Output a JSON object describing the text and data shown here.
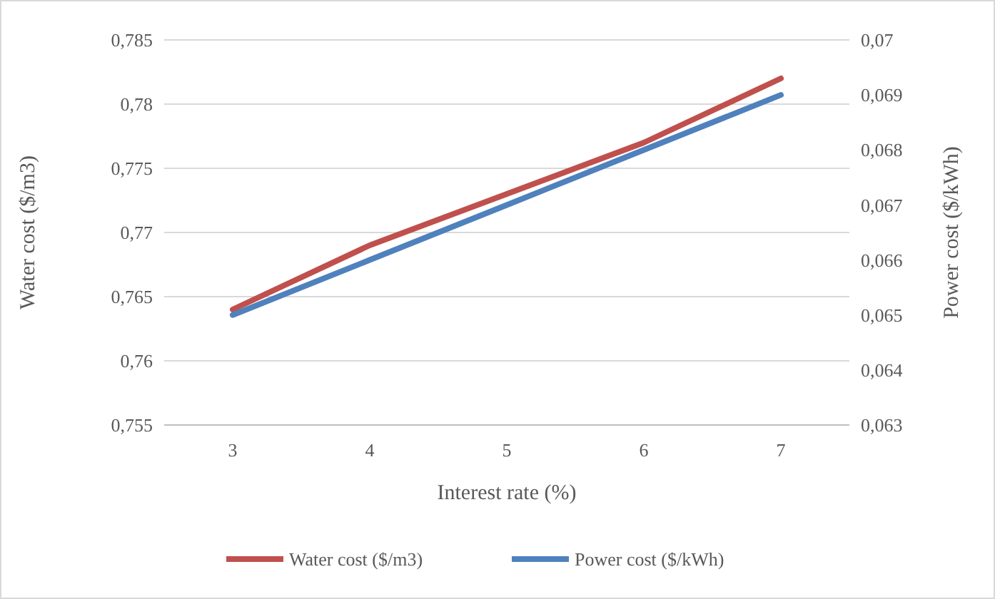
{
  "chart_data": {
    "type": "line",
    "xlabel": "Interest rate (%)",
    "ylabel": "Water cost ($/m3)",
    "y2label": "Power cost ($/kWh)",
    "categories": [
      "3",
      "4",
      "5",
      "6",
      "7"
    ],
    "series": [
      {
        "name": "Water cost ($/m3)",
        "color": "#c0504d",
        "values": [
          0.764,
          0.769,
          0.773,
          0.777,
          0.782
        ]
      },
      {
        "name": "Power cost ($/kWh)",
        "color": "#4f81bd",
        "axis": "y2",
        "values": [
          0.065,
          0.066,
          0.067,
          0.068,
          0.069
        ]
      }
    ],
    "ylim": [
      0.755,
      0.785
    ],
    "yticks": [
      {
        "value": 0.755,
        "label": "0,755"
      },
      {
        "value": 0.76,
        "label": "0,76"
      },
      {
        "value": 0.765,
        "label": "0,765"
      },
      {
        "value": 0.77,
        "label": "0,77"
      },
      {
        "value": 0.775,
        "label": "0,775"
      },
      {
        "value": 0.78,
        "label": "0,78"
      },
      {
        "value": 0.785,
        "label": "0,785"
      }
    ],
    "y2lim": [
      0.063,
      0.07
    ],
    "y2ticks": [
      {
        "value": 0.063,
        "label": "0,063"
      },
      {
        "value": 0.064,
        "label": "0,064"
      },
      {
        "value": 0.065,
        "label": "0,065"
      },
      {
        "value": 0.066,
        "label": "0,066"
      },
      {
        "value": 0.067,
        "label": "0,067"
      },
      {
        "value": 0.068,
        "label": "0,068"
      },
      {
        "value": 0.069,
        "label": "0,069"
      },
      {
        "value": 0.07,
        "label": "0,07"
      }
    ],
    "grid": "y",
    "legend": "bottom",
    "marker": "none",
    "line_style": "solid"
  }
}
